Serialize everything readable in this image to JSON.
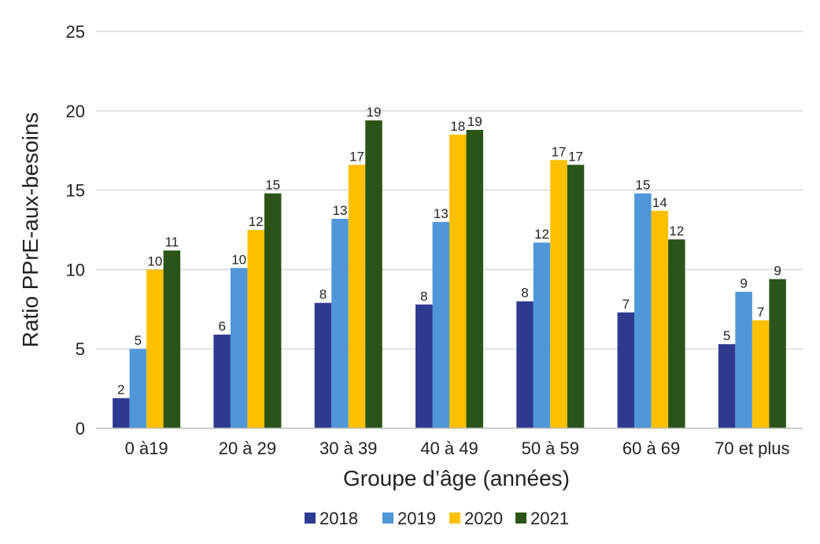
{
  "chart_data": {
    "type": "bar",
    "title": "",
    "xlabel": "Groupe d’âge (années)",
    "ylabel": "Ratio PPrE-aux-besoins",
    "ylim": [
      0,
      25
    ],
    "yticks": [
      "0",
      "5",
      "10",
      "15",
      "20",
      "25"
    ],
    "grid": true,
    "legend_position": "bottom",
    "categories": [
      "0 à19",
      "20 à 29",
      "30 à 39",
      "40 à 49",
      "50 à 59",
      "60 à 69",
      "70 et plus"
    ],
    "series": [
      {
        "name": "2018",
        "color": "#2e3a8f",
        "values": [
          1.9,
          5.9,
          7.9,
          7.8,
          8.0,
          7.3,
          5.3
        ],
        "labels": [
          "2",
          "6",
          "8",
          "8",
          "8",
          "7",
          "5"
        ]
      },
      {
        "name": "2019",
        "color": "#4f97d9",
        "values": [
          5.0,
          10.1,
          13.2,
          13.0,
          11.7,
          14.8,
          8.6
        ],
        "labels": [
          "5",
          "10",
          "13",
          "13",
          "12",
          "15",
          "9"
        ]
      },
      {
        "name": "2020",
        "color": "#ffc000",
        "values": [
          10.0,
          12.5,
          16.6,
          18.5,
          16.9,
          13.7,
          6.8
        ],
        "labels": [
          "10",
          "12",
          "17",
          "18",
          "17",
          "14",
          "7"
        ]
      },
      {
        "name": "2021",
        "color": "#2b5518",
        "values": [
          11.2,
          14.8,
          19.4,
          18.8,
          16.6,
          11.9,
          9.4
        ],
        "labels": [
          "11",
          "15",
          "19",
          "19",
          "17",
          "12",
          "9"
        ]
      }
    ]
  }
}
